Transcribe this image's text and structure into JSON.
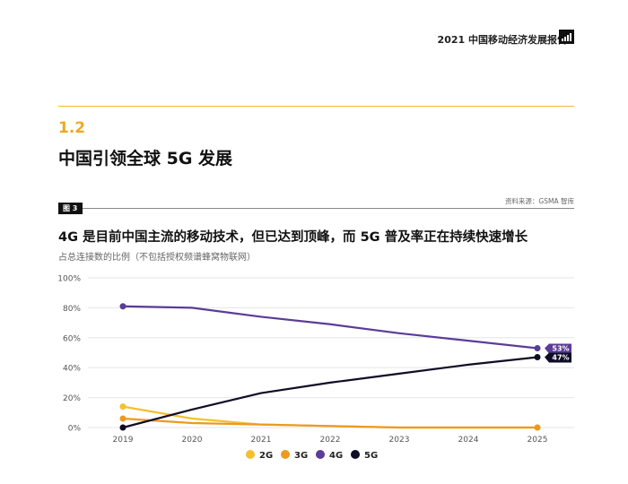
{
  "header": {
    "report_title": "2021 中国移动经济发展报告",
    "logo_icon": "gsma-bar-logo-icon"
  },
  "section": {
    "number": "1.2",
    "title": "中国引领全球 5G 发展"
  },
  "figure": {
    "tag": "图 3",
    "source": "资料来源：GSMA 智库"
  },
  "chart_data": {
    "type": "line",
    "title": "4G 是目前中国主流的移动技术，但已达到顶峰，而 5G 普及率正在持续快速增长",
    "subtitle": "占总连接数的比例（不包括授权频谱蜂窝物联网）",
    "xlabel": "",
    "ylabel": "",
    "x": [
      "2019",
      "2020",
      "2021",
      "2022",
      "2023",
      "2024",
      "2025"
    ],
    "ylim": [
      0,
      100
    ],
    "yticks": [
      "0%",
      "20%",
      "40%",
      "60%",
      "80%",
      "100%"
    ],
    "grid": true,
    "legend_position": "bottom",
    "series": [
      {
        "name": "2G",
        "color": "#f5c02f",
        "values": [
          14,
          6,
          2,
          1,
          0,
          0,
          0
        ]
      },
      {
        "name": "3G",
        "color": "#ec9a1f",
        "values": [
          6,
          3,
          2,
          1,
          0,
          0,
          0
        ]
      },
      {
        "name": "4G",
        "color": "#5b3c96",
        "values": [
          81,
          80,
          74,
          69,
          63,
          58,
          53
        ],
        "end_label": "53%"
      },
      {
        "name": "5G",
        "color": "#0f0d26",
        "values": [
          0,
          12,
          23,
          30,
          36,
          42,
          47
        ],
        "end_label": "47%"
      }
    ]
  }
}
